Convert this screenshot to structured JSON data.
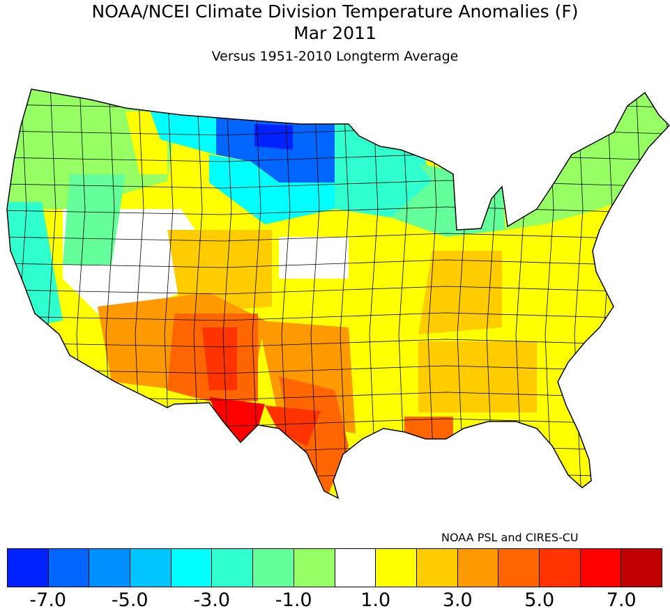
{
  "title": "NOAA/NCEI Climate Division Temperature Anomalies (F)",
  "period": "Mar 2011",
  "subtitle": "Versus 1951-2010 Longterm Average",
  "credit": "NOAA PSL and CIRES-CU",
  "colorbar": {
    "colors": [
      "#0022ff",
      "#0066ff",
      "#0090ff",
      "#00c4ff",
      "#00ffff",
      "#30ffd0",
      "#64ff9a",
      "#96ff64",
      "#ffffff",
      "#ffff00",
      "#ffcc00",
      "#ff9900",
      "#ff6600",
      "#ff3300",
      "#ff0000",
      "#c00000",
      "#800000"
    ],
    "boundaries": [
      -7,
      -6,
      -5,
      -4,
      -3,
      -2,
      -1,
      0,
      1,
      2,
      3,
      4,
      5,
      6,
      7
    ],
    "tick_labels": [
      "-7.0",
      "-5.0",
      "-3.0",
      "-1.0",
      "1.0",
      "3.0",
      "5.0",
      "7.0"
    ]
  },
  "regions": [
    {
      "name": "base",
      "anomaly": 1.5
    },
    {
      "name": "great-basin",
      "anomaly": 0.5
    },
    {
      "name": "pacific-northwest",
      "anomaly": -0.5
    },
    {
      "name": "coastal-california",
      "anomaly": -2.5
    },
    {
      "name": "oregon-interior",
      "anomaly": -1.5
    },
    {
      "name": "idaho",
      "anomaly": 1.5
    },
    {
      "name": "western-montana",
      "anomaly": -3.5
    },
    {
      "name": "northern-plains",
      "anomaly": -6.5
    },
    {
      "name": "dakotas-core-north",
      "anomaly": -7.5
    },
    {
      "name": "dakotas-core-south",
      "anomaly": -6.5
    },
    {
      "name": "central-plains-north",
      "anomaly": -3.5
    },
    {
      "name": "minnesota-wisconsin",
      "anomaly": -2.5
    },
    {
      "name": "great-lakes",
      "anomaly": -1.5
    },
    {
      "name": "northeast",
      "anomaly": -0.5
    },
    {
      "name": "nebraska-kansas",
      "anomaly": 0.5
    },
    {
      "name": "colorado",
      "anomaly": 2.5
    },
    {
      "name": "ohio-valley",
      "anomaly": 2.5
    },
    {
      "name": "southeast",
      "anomaly": 2.5
    },
    {
      "name": "arizona-new-mexico",
      "anomaly": 3.5
    },
    {
      "name": "north-texas",
      "anomaly": 3.5
    },
    {
      "name": "new-mexico-south",
      "anomaly": 4.5
    },
    {
      "name": "south-texas",
      "anomaly": 4.5
    },
    {
      "name": "new-mexico-core",
      "anomaly": 5.5
    },
    {
      "name": "central-texas",
      "anomaly": 5.5
    },
    {
      "name": "trans-pecos",
      "anomaly": 6.5
    },
    {
      "name": "louisiana-coast",
      "anomaly": 4.5
    },
    {
      "name": "florida",
      "anomaly": 1.5
    }
  ]
}
